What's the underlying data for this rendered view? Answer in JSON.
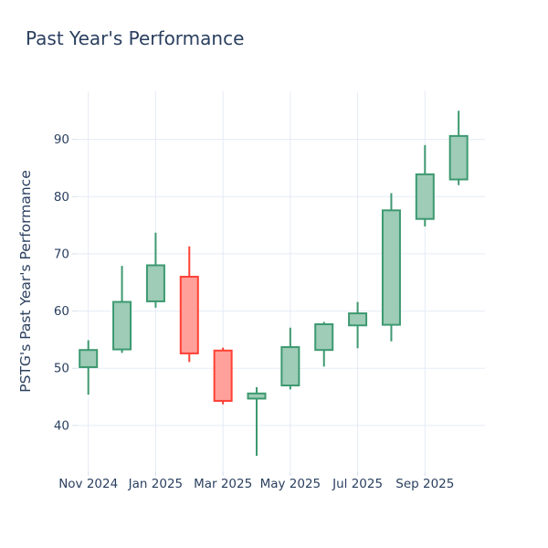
{
  "title": "Past Year's Performance",
  "colors": {
    "increasing_line": "#3D9970",
    "increasing_fill": "#9ECCB7",
    "decreasing_line": "#FF4136",
    "decreasing_fill": "#FFA09A",
    "grid": "#E5EBF5",
    "tick_mark": "#D5DEEB",
    "text": "#2A3F5F",
    "background": "#FFFFFF"
  },
  "chart_data": {
    "type": "candlestick",
    "title": "Past Year's Performance",
    "ylabel": "PSTG's Past Year's Performance",
    "xlabel": "",
    "grid": true,
    "legend": false,
    "categories": [
      "Nov 2024",
      "Dec 2024",
      "Jan 2025",
      "Feb 2025",
      "Mar 2025",
      "Apr 2025",
      "May 2025",
      "Jun 2025",
      "Jul 2025",
      "Aug 2025",
      "Sep 2025",
      "Oct 2025"
    ],
    "open": [
      50.2,
      53.3,
      61.7,
      66.0,
      53.1,
      44.7,
      47.0,
      53.2,
      57.5,
      57.6,
      76.1,
      83.0
    ],
    "high": [
      54.9,
      67.9,
      73.7,
      71.3,
      53.6,
      46.7,
      57.1,
      58.1,
      61.6,
      80.6,
      89.0,
      95.0
    ],
    "low": [
      45.4,
      52.7,
      60.6,
      51.1,
      43.7,
      34.7,
      46.3,
      50.3,
      53.5,
      54.7,
      74.8,
      82.0
    ],
    "close": [
      53.2,
      61.6,
      68.0,
      52.6,
      44.3,
      45.6,
      53.7,
      57.7,
      59.6,
      77.6,
      83.9,
      90.6
    ],
    "directions": [
      "up",
      "up",
      "up",
      "down",
      "down",
      "up",
      "up",
      "up",
      "up",
      "up",
      "up",
      "up"
    ],
    "x_tick_labels": [
      "Nov 2024",
      "Jan 2025",
      "Mar 2025",
      "May 2025",
      "Jul 2025",
      "Sep 2025"
    ],
    "x_tick_indices": [
      0,
      2,
      4,
      6,
      8,
      10
    ],
    "y_ticks": [
      40,
      50,
      60,
      70,
      80,
      90
    ],
    "ylim": [
      32.0,
      98.4
    ]
  }
}
